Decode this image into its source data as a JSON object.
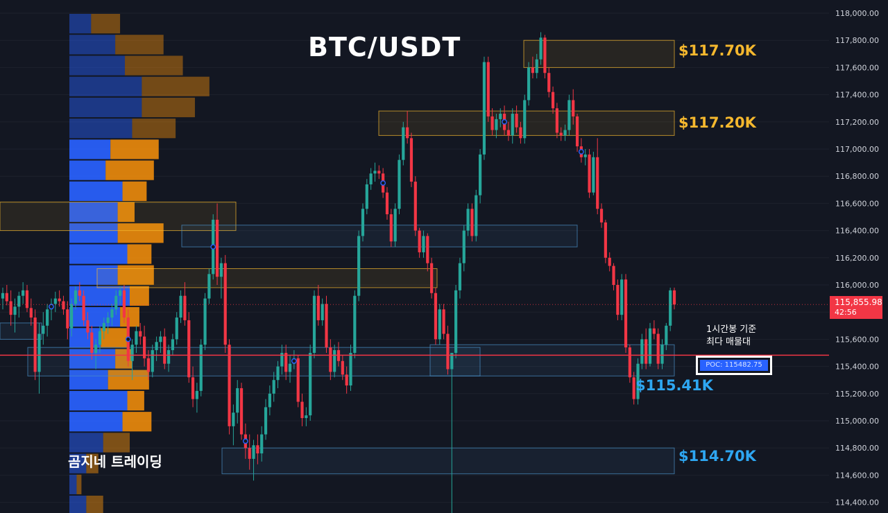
{
  "header": {
    "title": "BTC/USDT"
  },
  "branding": {
    "channel": "곰지네 트레이딩"
  },
  "level_labels": [
    {
      "id": "lvl-117700",
      "text": "$117.70K",
      "price": 117700,
      "color": "#f5b82e"
    },
    {
      "id": "lvl-117200",
      "text": "$117.20K",
      "price": 117200,
      "color": "#f5b82e"
    },
    {
      "id": "lvl-115410",
      "text": "$115.41K",
      "price": 115410,
      "color": "#2ea7f2"
    },
    {
      "id": "lvl-114700",
      "text": "$114.70K",
      "price": 114700,
      "color": "#2ea7f2"
    }
  ],
  "annotation": {
    "line1": "1시간봉 기준",
    "line2": "최다 매물대"
  },
  "poc": {
    "label": "POC: 115482.75",
    "price": 115482.75,
    "line_color": "#f23645"
  },
  "last_price": {
    "value": "115,855.98",
    "countdown": "42:56",
    "price": 115855.98
  },
  "colors": {
    "background": "#131722",
    "up": "#26a69a",
    "down": "#f23645",
    "vp_up": "#2962ff",
    "vp_down": "#e8890c",
    "supply_zone": "#f5b82e",
    "demand_zone": "#4a90c8"
  },
  "chart_data": {
    "type": "candlestick",
    "title": "BTC/USDT",
    "timeframe": "1h",
    "ylim": [
      114300,
      118100
    ],
    "y_ticks": [
      118000,
      117800,
      117600,
      117400,
      117200,
      117000,
      116800,
      116600,
      116400,
      116200,
      116000,
      115800,
      115600,
      115400,
      115200,
      115000,
      114800,
      114600,
      114400
    ],
    "y_tick_labels": [
      "118,000.00",
      "117,800.00",
      "117,600.00",
      "117,400.00",
      "117,200.00",
      "117,000.00",
      "116,800.00",
      "116,600.00",
      "116,400.00",
      "116,200.00",
      "116,000.00",
      "115,800.00",
      "115,600.00",
      "115,400.00",
      "115,200.00",
      "115,000.00",
      "114,800.00",
      "114,600.00",
      "114,400.00"
    ],
    "grid": true,
    "candles_ohlc": [
      [
        115900,
        115980,
        115820,
        115940
      ],
      [
        115940,
        116000,
        115850,
        115880
      ],
      [
        115880,
        115960,
        115700,
        115780
      ],
      [
        115780,
        115900,
        115650,
        115840
      ],
      [
        115840,
        115950,
        115760,
        115920
      ],
      [
        115920,
        116020,
        115860,
        115960
      ],
      [
        115960,
        116000,
        115800,
        115830
      ],
      [
        115830,
        115900,
        115700,
        115760
      ],
      [
        115760,
        115820,
        115300,
        115360
      ],
      [
        115360,
        115720,
        115200,
        115640
      ],
      [
        115640,
        115800,
        115560,
        115700
      ],
      [
        115700,
        115860,
        115620,
        115820
      ],
      [
        115820,
        115900,
        115740,
        115860
      ],
      [
        115860,
        115950,
        115800,
        115900
      ],
      [
        115900,
        115960,
        115840,
        115880
      ],
      [
        115880,
        115920,
        115780,
        115820
      ],
      [
        115820,
        115880,
        115600,
        115680
      ],
      [
        115680,
        115900,
        115620,
        115860
      ],
      [
        115860,
        115990,
        115820,
        115960
      ],
      [
        115960,
        116020,
        115880,
        115920
      ],
      [
        115920,
        115960,
        115700,
        115740
      ],
      [
        115740,
        115800,
        115600,
        115650
      ],
      [
        115650,
        115700,
        115450,
        115500
      ],
      [
        115500,
        115600,
        115380,
        115560
      ],
      [
        115560,
        115700,
        115500,
        115660
      ],
      [
        115660,
        115760,
        115600,
        115720
      ],
      [
        115720,
        115800,
        115640,
        115760
      ],
      [
        115760,
        115860,
        115700,
        115820
      ],
      [
        115820,
        115960,
        115780,
        115920
      ],
      [
        115920,
        115990,
        115860,
        115960
      ],
      [
        115960,
        116000,
        115720,
        115760
      ],
      [
        115760,
        115820,
        115400,
        115440
      ],
      [
        115440,
        115600,
        115300,
        115560
      ],
      [
        115560,
        115700,
        115500,
        115660
      ],
      [
        115660,
        115720,
        115560,
        115620
      ],
      [
        115620,
        115700,
        115400,
        115460
      ],
      [
        115460,
        115520,
        115300,
        115360
      ],
      [
        115360,
        115560,
        115320,
        115520
      ],
      [
        115520,
        115620,
        115440,
        115580
      ],
      [
        115580,
        115660,
        115500,
        115620
      ],
      [
        115620,
        115680,
        115380,
        115420
      ],
      [
        115420,
        115560,
        115360,
        115520
      ],
      [
        115520,
        115640,
        115480,
        115600
      ],
      [
        115600,
        115800,
        115560,
        115760
      ],
      [
        115760,
        115960,
        115720,
        115920
      ],
      [
        115920,
        116020,
        115700,
        115740
      ],
      [
        115740,
        115800,
        115280,
        115320
      ],
      [
        115320,
        115400,
        115100,
        115160
      ],
      [
        115160,
        115280,
        115060,
        115220
      ],
      [
        115220,
        115600,
        115180,
        115560
      ],
      [
        115560,
        115940,
        115520,
        115900
      ],
      [
        115900,
        116120,
        115860,
        116080
      ],
      [
        116080,
        116520,
        116040,
        116480
      ],
      [
        116480,
        116600,
        116000,
        116060
      ],
      [
        116060,
        116200,
        115900,
        116160
      ],
      [
        116160,
        116220,
        115500,
        115560
      ],
      [
        115560,
        115600,
        114900,
        114960
      ],
      [
        114960,
        115120,
        114820,
        115060
      ],
      [
        115060,
        115300,
        114980,
        115240
      ],
      [
        115240,
        115280,
        114860,
        114900
      ],
      [
        114900,
        114980,
        114720,
        114800
      ],
      [
        114800,
        114900,
        114640,
        114720
      ],
      [
        114720,
        114860,
        114560,
        114820
      ],
      [
        114820,
        114900,
        114680,
        114760
      ],
      [
        114760,
        114960,
        114700,
        114900
      ],
      [
        114900,
        115160,
        114860,
        115100
      ],
      [
        115100,
        115260,
        115040,
        115200
      ],
      [
        115200,
        115360,
        115140,
        115300
      ],
      [
        115300,
        115440,
        115240,
        115400
      ],
      [
        115400,
        115560,
        115340,
        115500
      ],
      [
        115500,
        115560,
        115300,
        115360
      ],
      [
        115360,
        115480,
        115280,
        115420
      ],
      [
        115420,
        115520,
        115380,
        115460
      ],
      [
        115460,
        115480,
        115100,
        115140
      ],
      [
        115140,
        115200,
        114960,
        115020
      ],
      [
        115020,
        115100,
        114960,
        115040
      ],
      [
        115040,
        115560,
        115000,
        115500
      ],
      [
        115500,
        115960,
        115460,
        115920
      ],
      [
        115920,
        116000,
        115700,
        115740
      ],
      [
        115740,
        115900,
        115700,
        115860
      ],
      [
        115860,
        115920,
        115500,
        115540
      ],
      [
        115540,
        115600,
        115300,
        115360
      ],
      [
        115360,
        115560,
        115320,
        115520
      ],
      [
        115520,
        115580,
        115400,
        115440
      ],
      [
        115440,
        115480,
        115300,
        115340
      ],
      [
        115340,
        115400,
        115200,
        115260
      ],
      [
        115260,
        115560,
        115220,
        115500
      ],
      [
        115500,
        115960,
        115460,
        115920
      ],
      [
        115920,
        116400,
        115880,
        116360
      ],
      [
        116360,
        116600,
        116320,
        116560
      ],
      [
        116560,
        116780,
        116520,
        116740
      ],
      [
        116740,
        116860,
        116700,
        116820
      ],
      [
        116820,
        116900,
        116760,
        116840
      ],
      [
        116840,
        116880,
        116780,
        116820
      ],
      [
        116820,
        116860,
        116640,
        116680
      ],
      [
        116680,
        116720,
        116480,
        116520
      ],
      [
        116520,
        116560,
        116280,
        116320
      ],
      [
        116320,
        116600,
        116280,
        116560
      ],
      [
        116560,
        116960,
        116520,
        116920
      ],
      [
        116920,
        117200,
        116880,
        117160
      ],
      [
        117160,
        117280,
        117040,
        117080
      ],
      [
        117080,
        117120,
        116720,
        116760
      ],
      [
        116760,
        116800,
        116360,
        116400
      ],
      [
        116400,
        116420,
        116200,
        116240
      ],
      [
        116240,
        116400,
        116200,
        116360
      ],
      [
        116360,
        116380,
        116100,
        116160
      ],
      [
        116160,
        116200,
        115900,
        115940
      ],
      [
        115940,
        115980,
        115560,
        115600
      ],
      [
        115600,
        115860,
        115560,
        115820
      ],
      [
        115820,
        115860,
        115600,
        115640
      ],
      [
        115640,
        115700,
        115340,
        115380
      ],
      [
        115380,
        115400,
        114200,
        115500
      ],
      [
        115500,
        116000,
        115460,
        115960
      ],
      [
        115960,
        116200,
        115900,
        116160
      ],
      [
        116160,
        116440,
        116100,
        116400
      ],
      [
        116400,
        116600,
        116360,
        116560
      ],
      [
        116560,
        116600,
        116320,
        116360
      ],
      [
        116360,
        116700,
        116320,
        116660
      ],
      [
        116660,
        117000,
        116600,
        116960
      ],
      [
        116960,
        117680,
        116920,
        117640
      ],
      [
        117640,
        117680,
        117200,
        117240
      ],
      [
        117240,
        117300,
        117100,
        117140
      ],
      [
        117140,
        117260,
        117080,
        117220
      ],
      [
        117220,
        117300,
        117160,
        117260
      ],
      [
        117260,
        117320,
        117100,
        117140
      ],
      [
        117140,
        117200,
        117060,
        117100
      ],
      [
        117100,
        117300,
        117040,
        117260
      ],
      [
        117260,
        117320,
        117120,
        117160
      ],
      [
        117160,
        117200,
        117040,
        117080
      ],
      [
        117080,
        117400,
        117040,
        117360
      ],
      [
        117360,
        117640,
        117320,
        117600
      ],
      [
        117600,
        117680,
        117520,
        117560
      ],
      [
        117560,
        117700,
        117520,
        117660
      ],
      [
        117660,
        117860,
        117620,
        117820
      ],
      [
        117820,
        117840,
        117520,
        117560
      ],
      [
        117560,
        117600,
        117380,
        117420
      ],
      [
        117420,
        117460,
        117260,
        117300
      ],
      [
        117300,
        117340,
        117080,
        117120
      ],
      [
        117120,
        117160,
        117060,
        117100
      ],
      [
        117100,
        117180,
        117060,
        117140
      ],
      [
        117140,
        117400,
        117100,
        117360
      ],
      [
        117360,
        117440,
        117180,
        117240
      ],
      [
        117240,
        117260,
        116980,
        117020
      ],
      [
        117020,
        117080,
        116900,
        116940
      ],
      [
        116940,
        117000,
        116880,
        116960
      ],
      [
        116960,
        117000,
        116640,
        116680
      ],
      [
        116680,
        116980,
        116660,
        116940
      ],
      [
        116940,
        117080,
        116520,
        116560
      ],
      [
        116560,
        116600,
        116420,
        116460
      ],
      [
        116460,
        116480,
        116160,
        116200
      ],
      [
        116200,
        116240,
        116100,
        116140
      ],
      [
        116140,
        116160,
        115960,
        116000
      ],
      [
        116000,
        116040,
        115740,
        115780
      ],
      [
        115780,
        116080,
        115740,
        116040
      ],
      [
        116040,
        116080,
        115500,
        115540
      ],
      [
        115540,
        115560,
        115280,
        115320
      ],
      [
        115320,
        115360,
        115120,
        115160
      ],
      [
        115160,
        115460,
        115120,
        115420
      ],
      [
        115420,
        115640,
        115380,
        115600
      ],
      [
        115600,
        115680,
        115380,
        115420
      ],
      [
        115420,
        115720,
        115400,
        115680
      ],
      [
        115680,
        115740,
        115600,
        115640
      ],
      [
        115640,
        115680,
        115380,
        115420
      ],
      [
        115420,
        115600,
        115380,
        115560
      ],
      [
        115560,
        115720,
        115520,
        115700
      ],
      [
        115700,
        115980,
        115660,
        115960
      ],
      [
        115960,
        115980,
        115820,
        115856
      ]
    ],
    "zones": [
      {
        "kind": "supply",
        "top": 117800,
        "bottom": 117600,
        "x_start": 755,
        "x_end": 972
      },
      {
        "kind": "supply",
        "top": 117280,
        "bottom": 117100,
        "x_start": 546,
        "x_end": 972
      },
      {
        "kind": "supply",
        "top": 116610,
        "bottom": 116400,
        "x_start": 0,
        "x_end": 340
      },
      {
        "kind": "demand",
        "top": 116440,
        "bottom": 116280,
        "x_start": 262,
        "x_end": 832
      },
      {
        "kind": "supply",
        "top": 116120,
        "bottom": 115980,
        "x_start": 140,
        "x_end": 630
      },
      {
        "kind": "demand",
        "top": 115540,
        "bottom": 115330,
        "x_start": 40,
        "x_end": 692
      },
      {
        "kind": "demand",
        "top": 115560,
        "bottom": 115330,
        "x_start": 620,
        "x_end": 972
      },
      {
        "kind": "demand",
        "top": 114800,
        "bottom": 114610,
        "x_start": 320,
        "x_end": 972
      },
      {
        "kind": "demand",
        "top": 115720,
        "bottom": 115600,
        "x_start": 0,
        "x_end": 60
      }
    ],
    "volume_profile": {
      "price_low": 114300,
      "price_high": 118000,
      "rows": [
        [
          14,
          14
        ],
        [
          6,
          4
        ],
        [
          14,
          10
        ],
        [
          28,
          22
        ],
        [
          44,
          24
        ],
        [
          48,
          14
        ],
        [
          32,
          34
        ],
        [
          38,
          14
        ],
        [
          26,
          22
        ],
        [
          42,
          16
        ],
        [
          50,
          16
        ],
        [
          40,
          30
        ],
        [
          48,
          20
        ],
        [
          40,
          38
        ],
        [
          40,
          14
        ],
        [
          44,
          20
        ],
        [
          30,
          40
        ],
        [
          34,
          40
        ],
        [
          52,
          36
        ],
        [
          60,
          44
        ],
        [
          60,
          56
        ],
        [
          46,
          48
        ],
        [
          38,
          40
        ],
        [
          18,
          24
        ]
      ]
    }
  }
}
